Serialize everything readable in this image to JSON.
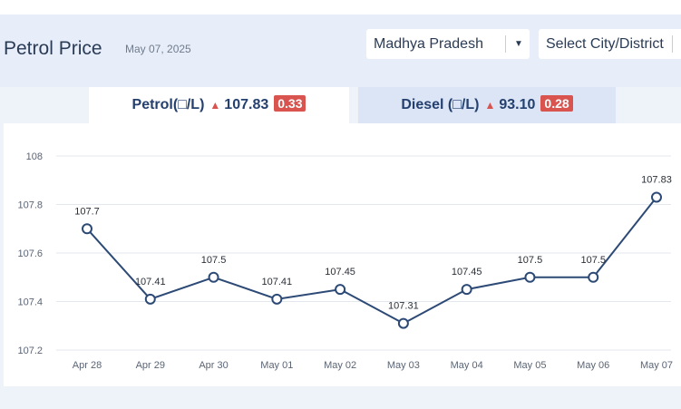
{
  "header": {
    "title": "Petrol Price",
    "date": "May 07, 2025",
    "state_select": "Madhya Pradesh",
    "city_select": "Select City/District"
  },
  "tabs": [
    {
      "label": "Petrol(□/L)",
      "price": "107.83",
      "change": "0.33",
      "trend": "up",
      "active": true
    },
    {
      "label": "Diesel (□/L)",
      "price": "93.10",
      "change": "0.28",
      "trend": "up",
      "active": false
    }
  ],
  "colors": {
    "line": "#2c4a75",
    "up": "#d9534f",
    "active_tab_bg": "#ffffff",
    "inactive_tab_bg": "#dbe5f6"
  },
  "chart_data": {
    "type": "line",
    "title": "",
    "xlabel": "",
    "ylabel": "",
    "categories": [
      "Apr 28",
      "Apr 29",
      "Apr 30",
      "May 01",
      "May 02",
      "May 03",
      "May 04",
      "May 05",
      "May 06",
      "May 07"
    ],
    "series": [
      {
        "values": [
          107.7,
          107.41,
          107.5,
          107.41,
          107.45,
          107.31,
          107.45,
          107.5,
          107.5,
          107.83
        ]
      }
    ],
    "data_labels": [
      "107.7",
      "107.41",
      "107.5",
      "107.41",
      "107.45",
      "107.31",
      "107.45",
      "107.5",
      "107.5",
      "107.83"
    ],
    "ylim": [
      107.2,
      108
    ],
    "yticks": [
      "107.2",
      "107.4",
      "107.6",
      "107.8",
      "108"
    ],
    "grid": true,
    "legend": "none"
  }
}
